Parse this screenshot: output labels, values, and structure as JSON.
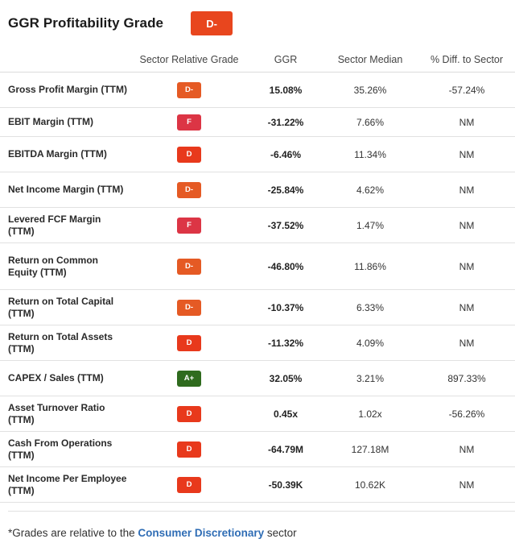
{
  "header": {
    "title": "GGR Profitability Grade",
    "grade": "D-",
    "grade_color": "#e8461e"
  },
  "columns": {
    "name": "",
    "grade": "Sector Relative Grade",
    "ggr": "GGR",
    "median": "Sector Median",
    "diff": "% Diff. to Sector"
  },
  "grade_colors": {
    "D-": "#e55a24",
    "F": "#dc3545",
    "D": "#e8391c",
    "A+": "#2f6b1e"
  },
  "rows": [
    {
      "name": "Gross Profit Margin (TTM)",
      "grade": "D-",
      "ggr": "15.08%",
      "median": "35.26%",
      "diff": "-57.24%"
    },
    {
      "name": "EBIT Margin (TTM)",
      "grade": "F",
      "ggr": "-31.22%",
      "median": "7.66%",
      "diff": "NM"
    },
    {
      "name": "EBITDA Margin (TTM)",
      "grade": "D",
      "ggr": "-6.46%",
      "median": "11.34%",
      "diff": "NM"
    },
    {
      "name": "Net Income Margin (TTM)",
      "grade": "D-",
      "ggr": "-25.84%",
      "median": "4.62%",
      "diff": "NM"
    },
    {
      "name": "Levered FCF Margin (TTM)",
      "grade": "F",
      "ggr": "-37.52%",
      "median": "1.47%",
      "diff": "NM"
    },
    {
      "name": "Return on Common Equity (TTM)",
      "grade": "D-",
      "ggr": "-46.80%",
      "median": "11.86%",
      "diff": "NM"
    },
    {
      "name": "Return on Total Capital (TTM)",
      "grade": "D-",
      "ggr": "-10.37%",
      "median": "6.33%",
      "diff": "NM"
    },
    {
      "name": "Return on Total Assets (TTM)",
      "grade": "D",
      "ggr": "-11.32%",
      "median": "4.09%",
      "diff": "NM"
    },
    {
      "name": "CAPEX / Sales (TTM)",
      "grade": "A+",
      "ggr": "32.05%",
      "median": "3.21%",
      "diff": "897.33%"
    },
    {
      "name": "Asset Turnover Ratio (TTM)",
      "grade": "D",
      "ggr": "0.45x",
      "median": "1.02x",
      "diff": "-56.26%"
    },
    {
      "name": "Cash From Operations (TTM)",
      "grade": "D",
      "ggr": "-64.79M",
      "median": "127.18M",
      "diff": "NM"
    },
    {
      "name": "Net Income Per Employee (TTM)",
      "grade": "D",
      "ggr": "-50.39K",
      "median": "10.62K",
      "diff": "NM"
    }
  ],
  "footer": {
    "prefix": "*Grades are relative to the ",
    "link": "Consumer Discretionary",
    "suffix": " sector"
  }
}
